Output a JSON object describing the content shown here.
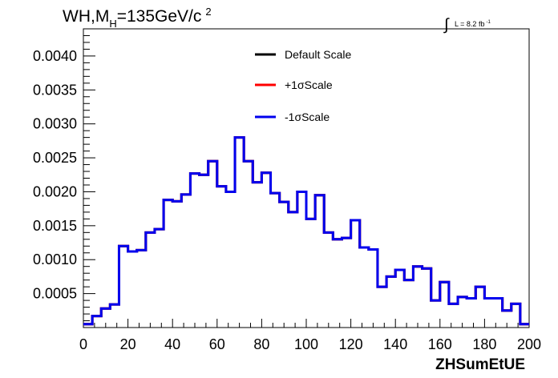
{
  "chart_data": {
    "type": "line",
    "drawstyle": "step",
    "title": {
      "prefix": "WH,M",
      "subscript": "H",
      "rest": "=135GeV/c",
      "superscript": "2"
    },
    "luminosity": {
      "integral_symbol": "∫",
      "text": "L = 8.2 fb",
      "superscript": "-1"
    },
    "xlabel": "ZHSumEtUE",
    "ylabel": "",
    "xlim": [
      0,
      200
    ],
    "ylim": [
      0,
      0.0044
    ],
    "x_ticks": [
      "0",
      "20",
      "40",
      "60",
      "80",
      "100",
      "120",
      "140",
      "160",
      "180",
      "200"
    ],
    "y_ticks": [
      "0.0005",
      "0.0010",
      "0.0015",
      "0.0020",
      "0.0025",
      "0.0030",
      "0.0035",
      "0.0040"
    ],
    "grid": false,
    "legend_position": "top-center",
    "bin_edges": [
      0,
      4,
      8,
      12,
      16,
      20,
      24,
      28,
      32,
      36,
      40,
      44,
      48,
      52,
      56,
      60,
      64,
      68,
      72,
      76,
      80,
      84,
      88,
      92,
      96,
      100,
      104,
      108,
      112,
      116,
      120,
      124,
      128,
      132,
      136,
      140,
      144,
      148,
      152,
      156,
      160,
      164,
      168,
      172,
      176,
      180,
      184,
      188,
      192,
      196,
      200
    ],
    "series": [
      {
        "name": "Default Scale",
        "color": "#000000",
        "values": [
          5e-05,
          0.00017,
          0.00028,
          0.00034,
          0.0012,
          0.00112,
          0.00114,
          0.0014,
          0.00145,
          0.00188,
          0.00186,
          0.00196,
          0.00227,
          0.00225,
          0.00245,
          0.00208,
          0.002,
          0.0028,
          0.00245,
          0.00214,
          0.00228,
          0.00198,
          0.00185,
          0.0017,
          0.002,
          0.0016,
          0.00195,
          0.0014,
          0.0013,
          0.00132,
          0.00158,
          0.00118,
          0.00115,
          0.0006,
          0.00075,
          0.00085,
          0.0007,
          0.0009,
          0.00087,
          0.0004,
          0.00067,
          0.00035,
          0.00045,
          0.00043,
          0.0006,
          0.00043,
          0.00043,
          0.00025,
          0.00035,
          5e-05
        ]
      },
      {
        "name": "+1σScale",
        "color": "#ff0000",
        "values": [
          5e-05,
          0.00017,
          0.00028,
          0.00034,
          0.0012,
          0.00112,
          0.00114,
          0.0014,
          0.00145,
          0.00188,
          0.00186,
          0.00196,
          0.00227,
          0.00225,
          0.00245,
          0.00208,
          0.002,
          0.0028,
          0.00245,
          0.00214,
          0.00228,
          0.00198,
          0.00185,
          0.0017,
          0.002,
          0.0016,
          0.00195,
          0.0014,
          0.0013,
          0.00132,
          0.00158,
          0.00118,
          0.00115,
          0.0006,
          0.00075,
          0.00085,
          0.0007,
          0.0009,
          0.00087,
          0.0004,
          0.00067,
          0.00035,
          0.00045,
          0.00043,
          0.0006,
          0.00043,
          0.00043,
          0.00025,
          0.00035,
          5e-05
        ]
      },
      {
        "name": "-1σScale",
        "color": "#0000ee",
        "values": [
          5e-05,
          0.00017,
          0.00028,
          0.00034,
          0.0012,
          0.00112,
          0.00114,
          0.0014,
          0.00145,
          0.00188,
          0.00186,
          0.00196,
          0.00227,
          0.00225,
          0.00245,
          0.00208,
          0.002,
          0.0028,
          0.00245,
          0.00214,
          0.00228,
          0.00198,
          0.00185,
          0.0017,
          0.002,
          0.0016,
          0.00195,
          0.0014,
          0.0013,
          0.00132,
          0.00158,
          0.00118,
          0.00115,
          0.0006,
          0.00075,
          0.00085,
          0.0007,
          0.0009,
          0.00087,
          0.0004,
          0.00067,
          0.00035,
          0.00045,
          0.00043,
          0.0006,
          0.00043,
          0.00043,
          0.00025,
          0.00035,
          5e-05
        ]
      }
    ]
  }
}
